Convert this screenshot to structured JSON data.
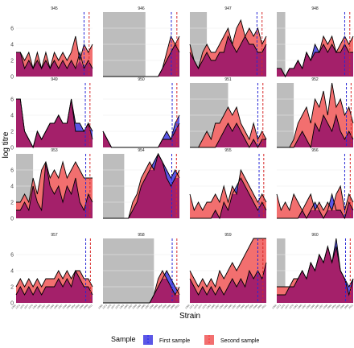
{
  "chart_data": {
    "type": "area",
    "ylabel": "log titre",
    "xlabel": "Strain",
    "ylim": [
      0,
      8
    ],
    "yticks": [
      0,
      2,
      4,
      6
    ],
    "x_tick_labels": [
      "1968",
      "1972",
      "1975",
      "1977",
      "1979",
      "1982",
      "1985",
      "1987",
      "1989",
      "1992",
      "1995",
      "1997",
      "1999",
      "2002",
      "2004",
      "2005",
      "2008",
      "2009",
      "2011"
    ],
    "legend": {
      "title": "Sample",
      "placement": "bottom",
      "entries": [
        {
          "label": "First sample",
          "color": "#5b57e6",
          "line": "#1f1fff"
        },
        {
          "label": "Second sample",
          "color": "#f26f6f",
          "line": "#ff3333"
        }
      ]
    },
    "overlap_color": "#a4206a",
    "shade_color": "#bdbdbd",
    "birth_line_color": "#2929d6",
    "sample_line_color": "#d62929",
    "panels": [
      {
        "id": "945",
        "shade": [
          0,
          0
        ],
        "v1": 16.0,
        "v2": 17.2,
        "first": [
          3,
          3,
          1,
          2,
          1,
          2,
          1,
          2,
          1,
          2,
          1,
          2,
          1,
          2,
          1,
          3,
          1,
          2,
          1
        ],
        "second": [
          3,
          3,
          2,
          3,
          1,
          3,
          1,
          3,
          1,
          3,
          2,
          3,
          2,
          3,
          5,
          2,
          4,
          3,
          4
        ]
      },
      {
        "id": "946",
        "shade": [
          0,
          10
        ],
        "v1": 16.1,
        "v2": 17.4,
        "first": [
          0,
          0,
          0,
          0,
          0,
          0,
          0,
          0,
          0,
          0,
          0,
          0,
          0,
          0,
          1,
          2,
          3,
          4,
          3
        ],
        "second": [
          0,
          0,
          0,
          0,
          0,
          0,
          0,
          0,
          0,
          0,
          0,
          0,
          0,
          0,
          1,
          3,
          5,
          4,
          5
        ]
      },
      {
        "id": "947",
        "shade": [
          0,
          4
        ],
        "v1": 15.8,
        "v2": 17.0,
        "first": [
          3,
          2,
          1,
          2,
          3,
          2,
          2,
          3,
          3,
          5,
          4,
          3,
          4,
          5,
          4,
          4,
          3,
          3,
          4
        ],
        "second": [
          4,
          2,
          1,
          3,
          4,
          3,
          3,
          4,
          5,
          6,
          4,
          6,
          7,
          5,
          6,
          5,
          6,
          4,
          5
        ]
      },
      {
        "id": "948",
        "shade": [
          0,
          2
        ],
        "v1": 16.0,
        "v2": 17.2,
        "first": [
          1,
          1,
          0,
          1,
          1,
          2,
          1,
          3,
          2,
          4,
          3,
          4,
          3,
          4,
          3,
          3,
          4,
          3,
          3
        ],
        "second": [
          1,
          1,
          0,
          1,
          1,
          2,
          1,
          3,
          2,
          3,
          3,
          5,
          4,
          5,
          3,
          4,
          5,
          4,
          5
        ]
      },
      {
        "id": "949",
        "shade": [
          0,
          0
        ],
        "v1": 16.3,
        "v2": 17.4,
        "first": [
          6,
          6,
          2,
          1,
          0,
          2,
          1,
          2,
          3,
          3,
          4,
          3,
          3,
          6,
          3,
          3,
          2,
          3,
          2
        ],
        "second": [
          6,
          6,
          2,
          1,
          0,
          2,
          1,
          2,
          3,
          3,
          4,
          3,
          3,
          6,
          2,
          2,
          2,
          3,
          1
        ]
      },
      {
        "id": "950",
        "shade": [
          0,
          0
        ],
        "v1": 16.3,
        "v2": 17.4,
        "first": [
          2,
          1,
          0,
          0,
          0,
          0,
          0,
          0,
          0,
          0,
          0,
          0,
          0,
          0,
          1,
          2,
          1,
          3,
          4
        ],
        "second": [
          2,
          1,
          0,
          0,
          0,
          0,
          0,
          0,
          0,
          0,
          0,
          0,
          0,
          0,
          1,
          1,
          1,
          2,
          3
        ]
      },
      {
        "id": "951",
        "shade": [
          0,
          9
        ],
        "v1": 16.0,
        "v2": 17.2,
        "first": [
          0,
          0,
          0,
          0,
          0,
          0,
          0,
          1,
          2,
          3,
          2,
          3,
          2,
          1,
          0,
          1,
          0,
          1,
          1
        ],
        "second": [
          0,
          0,
          0,
          1,
          2,
          1,
          3,
          3,
          4,
          5,
          4,
          5,
          3,
          2,
          1,
          3,
          1,
          2,
          1
        ]
      },
      {
        "id": "952",
        "shade": [
          0,
          4
        ],
        "v1": 16.4,
        "v2": 17.5,
        "first": [
          0,
          0,
          0,
          0,
          0,
          1,
          2,
          1,
          0,
          3,
          2,
          4,
          3,
          2,
          4,
          2,
          1,
          2,
          1
        ],
        "second": [
          0,
          0,
          0,
          0,
          1,
          3,
          4,
          5,
          3,
          6,
          5,
          7,
          4,
          8,
          5,
          6,
          4,
          5,
          3
        ]
      },
      {
        "id": "953",
        "shade": [
          0,
          4
        ],
        "v1": 16.4,
        "v2": 17.4,
        "first": [
          1,
          1,
          2,
          1,
          4,
          2,
          1,
          7,
          4,
          3,
          4,
          2,
          4,
          3,
          5,
          2,
          1,
          3,
          2
        ],
        "second": [
          2,
          2,
          3,
          2,
          5,
          3,
          6,
          7,
          5,
          6,
          5,
          7,
          5,
          6,
          7,
          6,
          5,
          5,
          5
        ]
      },
      {
        "id": "954",
        "shade": [
          0,
          5
        ],
        "v1": 16.2,
        "v2": 17.3,
        "first": [
          0,
          0,
          0,
          0,
          0,
          0,
          0,
          1,
          2,
          4,
          5,
          6,
          7,
          8,
          7,
          6,
          5,
          6,
          5
        ],
        "second": [
          0,
          0,
          0,
          0,
          0,
          0,
          0,
          2,
          3,
          5,
          6,
          7,
          6,
          8,
          7,
          5,
          4,
          5,
          6
        ]
      },
      {
        "id": "955",
        "shade": [
          0,
          0
        ],
        "v1": 16.3,
        "v2": 17.4,
        "first": [
          0,
          0,
          0,
          0,
          0,
          0,
          1,
          0,
          2,
          1,
          3,
          4,
          5,
          4,
          3,
          2,
          1,
          2,
          1
        ],
        "second": [
          3,
          1,
          2,
          1,
          2,
          2,
          3,
          2,
          4,
          2,
          4,
          3,
          6,
          5,
          4,
          3,
          2,
          3,
          2
        ]
      },
      {
        "id": "956",
        "shade": [
          0,
          0
        ],
        "v1": 16.0,
        "v2": 17.3,
        "first": [
          0,
          0,
          0,
          0,
          0,
          0,
          1,
          0,
          1,
          2,
          1,
          0,
          1,
          3,
          1,
          1,
          0,
          2,
          1
        ],
        "second": [
          3,
          1,
          2,
          1,
          3,
          2,
          1,
          2,
          3,
          1,
          2,
          1,
          2,
          1,
          3,
          4,
          1,
          3,
          2
        ]
      },
      {
        "id": "957",
        "shade": [
          0,
          0
        ],
        "v1": 16.4,
        "v2": 17.5,
        "first": [
          1,
          2,
          1,
          2,
          1,
          2,
          1,
          2,
          2,
          2,
          3,
          2,
          3,
          2,
          4,
          3,
          2,
          2,
          1
        ],
        "second": [
          2,
          3,
          2,
          3,
          2,
          3,
          2,
          3,
          3,
          3,
          4,
          3,
          4,
          3,
          4,
          4,
          3,
          3,
          2
        ]
      },
      {
        "id": "958",
        "shade": [
          0,
          12
        ],
        "v1": 16.3,
        "v2": 17.4,
        "first": [
          0,
          0,
          0,
          0,
          0,
          0,
          0,
          0,
          0,
          0,
          0,
          0,
          1,
          2,
          3,
          4,
          3,
          2,
          1
        ],
        "second": [
          0,
          0,
          0,
          0,
          0,
          0,
          0,
          0,
          0,
          0,
          0,
          0,
          1,
          3,
          4,
          3,
          2,
          1,
          2
        ]
      },
      {
        "id": "959",
        "shade": [
          0,
          0
        ],
        "v1": 16.0,
        "v2": 17.2,
        "first": [
          3,
          2,
          1,
          2,
          1,
          2,
          1,
          2,
          1,
          2,
          3,
          2,
          3,
          2,
          4,
          3,
          4,
          3,
          5
        ],
        "second": [
          4,
          3,
          2,
          3,
          2,
          3,
          2,
          4,
          3,
          4,
          5,
          4,
          5,
          6,
          7,
          8,
          8,
          8,
          8
        ]
      },
      {
        "id": "960",
        "shade": [
          0,
          2
        ],
        "v1": 16.2,
        "v2": 17.3,
        "first": [
          1,
          1,
          1,
          2,
          2,
          3,
          4,
          3,
          5,
          4,
          6,
          5,
          7,
          5,
          8,
          4,
          3,
          2,
          3
        ],
        "second": [
          2,
          2,
          2,
          2,
          3,
          3,
          4,
          3,
          5,
          4,
          6,
          5,
          7,
          5,
          7,
          4,
          3,
          1,
          3
        ]
      }
    ]
  }
}
